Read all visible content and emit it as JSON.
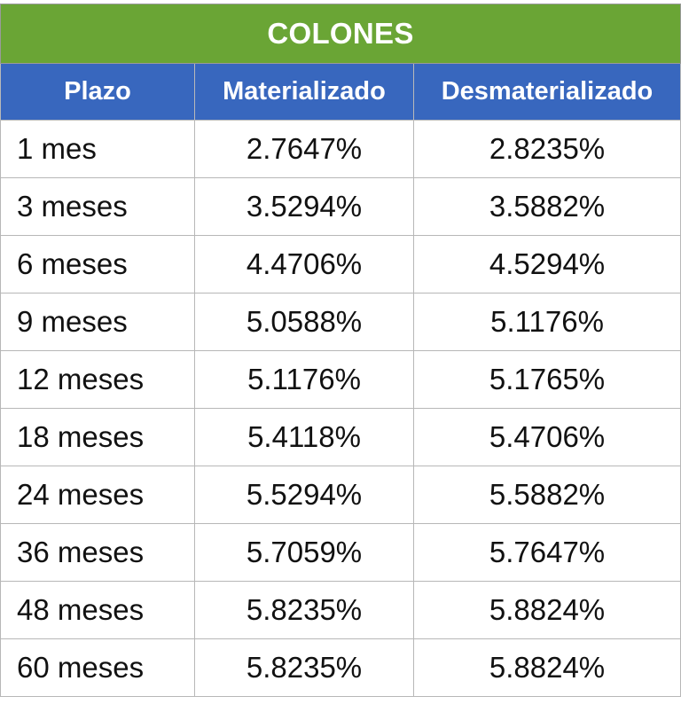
{
  "table": {
    "title": "COLONES",
    "headers": [
      "Plazo",
      "Materializado",
      "Desmaterializado"
    ],
    "rows": [
      {
        "plazo": "1 mes",
        "materializado": "2.7647%",
        "desmaterializado": "2.8235%"
      },
      {
        "plazo": "3 meses",
        "materializado": "3.5294%",
        "desmaterializado": "3.5882%"
      },
      {
        "plazo": "6 meses",
        "materializado": "4.4706%",
        "desmaterializado": "4.5294%"
      },
      {
        "plazo": "9 meses",
        "materializado": "5.0588%",
        "desmaterializado": "5.1176%"
      },
      {
        "plazo": "12 meses",
        "materializado": "5.1176%",
        "desmaterializado": "5.1765%"
      },
      {
        "plazo": "18 meses",
        "materializado": "5.4118%",
        "desmaterializado": "5.4706%"
      },
      {
        "plazo": "24 meses",
        "materializado": "5.5294%",
        "desmaterializado": "5.5882%"
      },
      {
        "plazo": "36 meses",
        "materializado": "5.7059%",
        "desmaterializado": "5.7647%"
      },
      {
        "plazo": "48 meses",
        "materializado": "5.8235%",
        "desmaterializado": "5.8824%"
      },
      {
        "plazo": "60 meses",
        "materializado": "5.8235%",
        "desmaterializado": "5.8824%"
      }
    ]
  },
  "colors": {
    "title_background": "#6aa535",
    "header_background": "#3867be",
    "header_text": "#ffffff",
    "grid_lines": "#b7b7b7"
  }
}
